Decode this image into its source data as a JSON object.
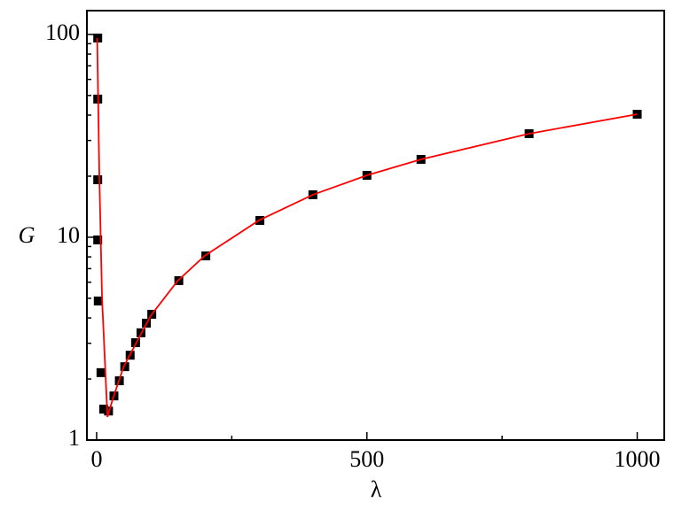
{
  "chart_data": {
    "type": "scatter",
    "x_label": "λ",
    "y_label": "G",
    "xlim": [
      -18,
      1050
    ],
    "xticks": [
      0,
      500,
      1000
    ],
    "ylim": [
      1,
      131
    ],
    "yticks": [
      1,
      10,
      100
    ],
    "y_log": true,
    "series": [
      {
        "kind": "points",
        "color": "#000000",
        "x": [
          2,
          2,
          2,
          2,
          3,
          8,
          13,
          22,
          32,
          42,
          52,
          62,
          72,
          82,
          92,
          102,
          152,
          202,
          302,
          400,
          500,
          600,
          800,
          1000
        ],
        "values": [
          96,
          48,
          19.2,
          9.7,
          4.85,
          2.15,
          1.42,
          1.39,
          1.65,
          1.96,
          2.3,
          2.62,
          3.02,
          3.38,
          3.77,
          4.17,
          6.11,
          8.09,
          12.1,
          16.2,
          20.2,
          24.2,
          32.4,
          40.4
        ]
      },
      {
        "kind": "line",
        "color": "#ff0000",
        "x": [
          1,
          5,
          10,
          20,
          30,
          50,
          100,
          150,
          200,
          300,
          400,
          500,
          600,
          800,
          1000
        ],
        "values": [
          96,
          20,
          5,
          1.3,
          1.6,
          2.3,
          4.1,
          6.1,
          8.1,
          12.1,
          16.2,
          20.2,
          24.2,
          32.4,
          40.4
        ]
      }
    ]
  }
}
